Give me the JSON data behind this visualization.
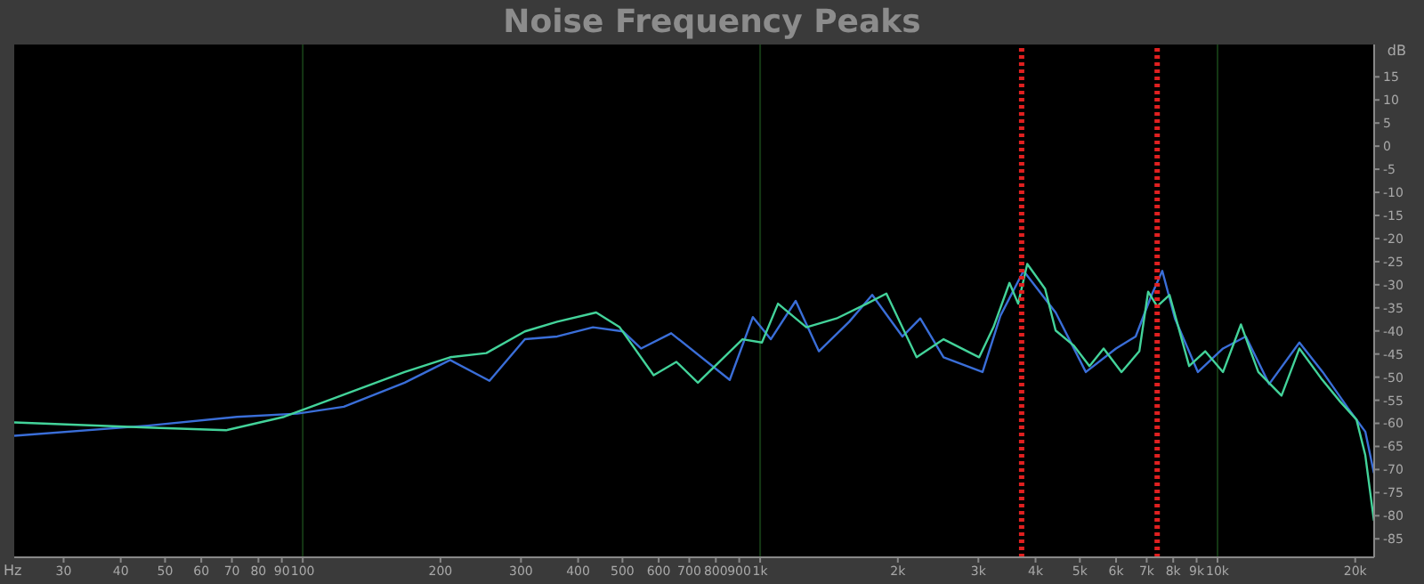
{
  "chart_data": {
    "type": "line",
    "title": "Noise Frequency Peaks",
    "xlabel": "Hz",
    "ylabel": "dB",
    "log": "x",
    "grid": true,
    "marker": "none",
    "line_style": "solid",
    "xlim": [
      23.4,
      22000
    ],
    "xticks": [
      30,
      40,
      50,
      60,
      70,
      80,
      90,
      100,
      200,
      300,
      400,
      500,
      600,
      700,
      800,
      900,
      {
        "value": 1000,
        "label": "1k"
      },
      {
        "value": 2000,
        "label": "2k"
      },
      {
        "value": 3000,
        "label": "3k"
      },
      {
        "value": 4000,
        "label": "4k"
      },
      {
        "value": 5000,
        "label": "5k"
      },
      {
        "value": 6000,
        "label": "6k"
      },
      {
        "value": 7000,
        "label": "7k"
      },
      {
        "value": 8000,
        "label": "8k"
      },
      {
        "value": 9000,
        "label": "9k"
      },
      {
        "value": 10000,
        "label": "10k"
      },
      {
        "value": 20000,
        "label": "20k"
      }
    ],
    "ylim": [
      -89,
      22
    ],
    "yticks": [
      15,
      10,
      5,
      0,
      -5,
      -10,
      -15,
      -20,
      -25,
      -30,
      -35,
      -40,
      -45,
      -50,
      -55,
      -60,
      -65,
      -70,
      -75,
      -80,
      -85
    ],
    "ref_lines": [
      {
        "axis": "x",
        "value": 3730,
        "color": "#e02020",
        "line_style": "dotted"
      },
      {
        "axis": "x",
        "value": 7380,
        "color": "#e02020",
        "line_style": "dotted"
      }
    ],
    "series": [
      {
        "color": "#3a6ed8",
        "x": [
          23.4,
          45.8,
          71.8,
          97.3,
          123,
          167,
          210,
          256,
          306,
          360,
          431,
          501,
          549,
          639,
          858,
          964,
          1055,
          1196,
          1344,
          1566,
          1758,
          2047,
          2239,
          2518,
          3064,
          3352,
          3766,
          4426,
          5153,
          5998,
          6622,
          7177,
          7572,
          8070,
          9059,
          10280,
          11530,
          12970,
          15100,
          16980,
          19250,
          21040,
          21980
        ],
        "values": [
          -62.7,
          -60.5,
          -58.6,
          -57.9,
          -56.4,
          -51.2,
          -46.3,
          -50.8,
          -41.8,
          -41.2,
          -39.2,
          -40.1,
          -43.8,
          -40.5,
          -50.6,
          -37,
          -41.8,
          -33.5,
          -44.4,
          -38,
          -32.2,
          -41.2,
          -37.3,
          -45.7,
          -48.9,
          -36.7,
          -27,
          -36,
          -48.9,
          -43.8,
          -41.2,
          -32.2,
          -27,
          -37.3,
          -48.9,
          -43.8,
          -41.2,
          -51.5,
          -42.5,
          -48.9,
          -56.6,
          -61.8,
          -70.8
        ]
      },
      {
        "color": "#43d39a",
        "x": [
          23.4,
          45.8,
          68,
          91,
          116,
          167,
          210,
          252,
          306,
          360,
          438,
          493,
          585,
          656,
          731,
          915,
          1009,
          1094,
          1262,
          1469,
          1711,
          1888,
          2198,
          2518,
          3012,
          3236,
          3508,
          3665,
          3837,
          4198,
          4426,
          4842,
          5248,
          5636,
          6166,
          6745,
          7051,
          7379,
          7852,
          8668,
          9397,
          10280,
          11250,
          11750,
          12280,
          13800,
          15100,
          16830,
          18540,
          20130,
          21040,
          21980
        ],
        "values": [
          -59.8,
          -60.9,
          -61.5,
          -58.6,
          -54.7,
          -48.9,
          -45.7,
          -44.8,
          -40.1,
          -38,
          -36,
          -39.2,
          -49.6,
          -46.7,
          -51.2,
          -41.8,
          -42.5,
          -34.1,
          -39.2,
          -37.3,
          -34.1,
          -31.9,
          -45.7,
          -41.8,
          -45.7,
          -39.2,
          -29.6,
          -34.1,
          -25.5,
          -30.9,
          -39.9,
          -43.1,
          -47.6,
          -43.8,
          -48.9,
          -44.4,
          -31.5,
          -34.7,
          -32.2,
          -47.6,
          -44.4,
          -48.9,
          -38.6,
          -43.8,
          -48.9,
          -54,
          -43.8,
          -50.2,
          -55.3,
          -59.2,
          -66.9,
          -81.1
        ]
      }
    ]
  }
}
